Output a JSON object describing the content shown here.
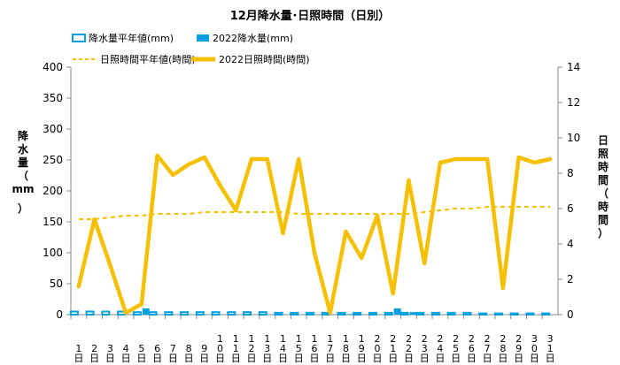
{
  "chart_data": {
    "type": "bar+line",
    "title": "12月降水量･日照時間（日別）",
    "legend": {
      "rain_normal": "降水量平年値(mm)",
      "rain_2022": "2022降水量(mm)",
      "sun_normal": "日照時間平年値(時間)",
      "sun_2022": "2022日照時間(時間)"
    },
    "ylabel_left": [
      "降",
      "水",
      "量",
      "（",
      "mm",
      "）"
    ],
    "ylabel_right": [
      "日",
      "照",
      "時",
      "間",
      "（",
      "時",
      "間",
      "）"
    ],
    "ylim_left": [
      0,
      400
    ],
    "yticks_left": [
      0,
      50,
      100,
      150,
      200,
      250,
      300,
      350,
      400
    ],
    "ylim_right": [
      0,
      14
    ],
    "yticks_right": [
      0,
      2,
      4,
      6,
      8,
      10,
      12,
      14
    ],
    "categories": [
      "1日",
      "2日",
      "3日",
      "4日",
      "5日",
      "6日",
      "7日",
      "8日",
      "9日",
      "10日",
      "11日",
      "12日",
      "13日",
      "14日",
      "15日",
      "16日",
      "17日",
      "18日",
      "19日",
      "20日",
      "21日",
      "22日",
      "23日",
      "24日",
      "25日",
      "26日",
      "27日",
      "28日",
      "29日",
      "30日",
      "31日"
    ],
    "series": [
      {
        "name": "降水量平年値(mm)",
        "kind": "bar-outline",
        "axis": "left",
        "color": "#00a0e0",
        "values": [
          5,
          5,
          5,
          5,
          4,
          4,
          4,
          4,
          4,
          4,
          4,
          4,
          4,
          3,
          3,
          3,
          3,
          3,
          3,
          3,
          3,
          3,
          3,
          3,
          3,
          3,
          2,
          2,
          2,
          2,
          2
        ]
      },
      {
        "name": "2022降水量(mm)",
        "kind": "bar",
        "axis": "left",
        "color": "#00a0e0",
        "values": [
          0,
          0,
          0,
          0,
          10,
          0,
          0,
          0,
          0,
          0,
          0,
          0,
          0,
          0,
          0,
          0,
          0,
          1,
          0,
          0,
          10,
          4,
          0,
          0,
          0,
          0,
          0,
          0,
          0,
          0,
          0
        ]
      },
      {
        "name": "日照時間平年値(時間)",
        "kind": "dashed-line",
        "axis": "right",
        "color": "#f5c000",
        "values": [
          5.4,
          5.4,
          5.5,
          5.6,
          5.6,
          5.7,
          5.7,
          5.7,
          5.8,
          5.8,
          5.8,
          5.8,
          5.8,
          5.8,
          5.7,
          5.7,
          5.7,
          5.7,
          5.7,
          5.7,
          5.7,
          5.7,
          5.8,
          5.9,
          6.0,
          6.0,
          6.1,
          6.1,
          6.1,
          6.1,
          6.1
        ]
      },
      {
        "name": "2022日照時間(時間)",
        "kind": "line",
        "axis": "right",
        "color": "#f5c000",
        "values": [
          1.6,
          5.4,
          2.8,
          0.1,
          0.6,
          9.0,
          7.9,
          8.5,
          8.9,
          7.3,
          5.9,
          8.8,
          8.8,
          4.6,
          8.8,
          3.5,
          0.1,
          4.7,
          3.2,
          5.6,
          1.2,
          7.6,
          2.9,
          8.6,
          8.8,
          8.8,
          8.8,
          1.5,
          8.9,
          8.6,
          8.8
        ]
      }
    ]
  }
}
